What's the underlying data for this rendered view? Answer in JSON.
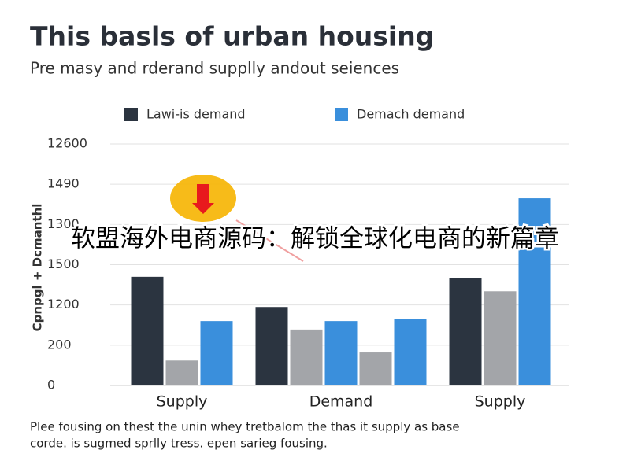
{
  "chart_data": {
    "type": "bar",
    "title": "This basls of urban housing",
    "subtitle": "Pre masy and rderand supplly andout seiences",
    "y_label": "Cpnpgl + Dcmanthl",
    "categories": [
      "Supply",
      "Demand",
      "Supply"
    ],
    "series": [
      {
        "name": "Lawi-is demand",
        "color": "#2b3440",
        "values": [
          2.7,
          1.95,
          2.66
        ]
      },
      {
        "color": "#a3a5a9",
        "values": [
          0.62,
          1.39,
          2.34
        ]
      },
      {
        "name": "Demach demand",
        "color": "#3a8fdc",
        "values": [
          1.6,
          1.6,
          4.65
        ]
      },
      {
        "color": "#a3a5a9",
        "values": [
          null,
          0.82,
          null
        ]
      },
      {
        "color": "#3a8fdc",
        "values": [
          null,
          1.66,
          null
        ]
      }
    ],
    "ylim": [
      0,
      6
    ],
    "yticks": [
      0,
      {
        "value": 1,
        "label": "200"
      },
      {
        "value": 2,
        "label": "1200"
      },
      {
        "value": 3,
        "label": "1500"
      },
      {
        "value": 4,
        "label": "1300"
      },
      {
        "value": 5,
        "label": "1490"
      },
      {
        "value": 6,
        "label": "12600"
      }
    ],
    "grid": true,
    "note_lines": [
      "Plee fousing on thest the unin whey tretbalom the thas it supply as base",
      "corde. is sugmed sprlly tress. epen sarieg fousing."
    ],
    "overlay": "软盟海外电商源码：解锁全球化电商的新篇章"
  }
}
